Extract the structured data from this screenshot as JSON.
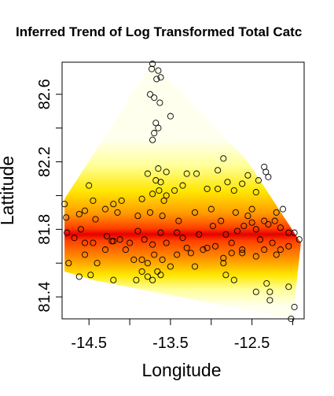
{
  "chart_data": {
    "type": "heatmap",
    "title": "Inferred Trend of Log Transformed Total Catc",
    "xlabel": "Longitude",
    "ylabel": "Lattitude",
    "xlim": [
      -14.83,
      -11.86
    ],
    "ylim": [
      81.27,
      82.79
    ],
    "xticks": [
      -14.5,
      -14.0,
      -13.5,
      -13.0,
      -12.5,
      -12.0
    ],
    "xtick_labels": [
      "-14.5",
      "",
      "-13.5",
      "",
      "-12.5",
      ""
    ],
    "yticks": [
      81.4,
      81.6,
      81.8,
      82.0,
      82.2,
      82.4,
      82.6
    ],
    "ytick_labels": [
      "81.4",
      "",
      "81.8",
      "",
      "82.2",
      "",
      "82.6"
    ],
    "color_scale": [
      "#ffffee",
      "#ffff99",
      "#ffe600",
      "#ff9900",
      "#ff4000",
      "#e60000"
    ],
    "trend_peak_latitude": 81.77,
    "hull": [
      [
        -13.72,
        82.79
      ],
      [
        -14.8,
        81.98
      ],
      [
        -14.8,
        81.55
      ],
      [
        -14.45,
        81.5
      ],
      [
        -12.0,
        81.27
      ],
      [
        -11.9,
        81.72
      ],
      [
        -12.55,
        82.2
      ]
    ],
    "points": [
      [
        -13.72,
        82.78
      ],
      [
        -13.65,
        82.74
      ],
      [
        -13.62,
        82.7
      ],
      [
        -13.67,
        82.69
      ],
      [
        -13.73,
        82.75
      ],
      [
        -13.7,
        82.58
      ],
      [
        -13.75,
        82.6
      ],
      [
        -13.63,
        82.55
      ],
      [
        -13.5,
        82.47
      ],
      [
        -13.68,
        82.43
      ],
      [
        -13.65,
        82.4
      ],
      [
        -13.7,
        82.37
      ],
      [
        -13.72,
        82.33
      ],
      [
        -13.55,
        82.14
      ],
      [
        -13.65,
        82.16
      ],
      [
        -13.78,
        82.13
      ],
      [
        -13.68,
        82.09
      ],
      [
        -13.62,
        82.08
      ],
      [
        -13.3,
        82.13
      ],
      [
        -13.18,
        82.13
      ],
      [
        -12.92,
        82.15
      ],
      [
        -12.85,
        82.22
      ],
      [
        -12.62,
        82.07
      ],
      [
        -12.55,
        82.12
      ],
      [
        -12.42,
        82.09
      ],
      [
        -12.35,
        82.17
      ],
      [
        -12.33,
        82.14
      ],
      [
        -12.3,
        82.11
      ],
      [
        -12.45,
        82.02
      ],
      [
        -12.72,
        82.03
      ],
      [
        -12.8,
        82.08
      ],
      [
        -12.92,
        82.04
      ],
      [
        -13.05,
        82.04
      ],
      [
        -13.35,
        82.06
      ],
      [
        -13.45,
        82.03
      ],
      [
        -13.72,
        82.01
      ],
      [
        -13.64,
        82.03
      ],
      [
        -13.55,
        82.0
      ],
      [
        -13.58,
        81.97
      ],
      [
        -13.85,
        81.98
      ],
      [
        -14.1,
        81.97
      ],
      [
        -14.2,
        81.95
      ],
      [
        -14.45,
        81.97
      ],
      [
        -14.5,
        82.06
      ],
      [
        -14.55,
        81.91
      ],
      [
        -14.62,
        81.89
      ],
      [
        -14.8,
        81.95
      ],
      [
        -14.78,
        81.87
      ],
      [
        -14.77,
        81.78
      ],
      [
        -14.68,
        81.75
      ],
      [
        -14.6,
        81.8
      ],
      [
        -14.55,
        81.72
      ],
      [
        -14.45,
        81.72
      ],
      [
        -14.28,
        81.76
      ],
      [
        -14.22,
        81.73
      ],
      [
        -14.12,
        81.74
      ],
      [
        -14.0,
        81.72
      ],
      [
        -13.9,
        81.79
      ],
      [
        -13.82,
        81.74
      ],
      [
        -13.72,
        81.71
      ],
      [
        -13.62,
        81.78
      ],
      [
        -13.55,
        81.72
      ],
      [
        -13.42,
        81.78
      ],
      [
        -13.35,
        81.75
      ],
      [
        -13.3,
        81.69
      ],
      [
        -13.15,
        81.77
      ],
      [
        -13.05,
        81.69
      ],
      [
        -12.98,
        81.82
      ],
      [
        -12.88,
        81.85
      ],
      [
        -12.82,
        81.77
      ],
      [
        -12.75,
        81.72
      ],
      [
        -12.68,
        81.79
      ],
      [
        -12.62,
        81.68
      ],
      [
        -12.55,
        81.88
      ],
      [
        -12.5,
        81.84
      ],
      [
        -12.45,
        81.8
      ],
      [
        -12.4,
        81.74
      ],
      [
        -12.35,
        81.85
      ],
      [
        -12.3,
        81.83
      ],
      [
        -12.22,
        81.85
      ],
      [
        -12.15,
        81.81
      ],
      [
        -12.05,
        81.78
      ],
      [
        -11.98,
        81.78
      ],
      [
        -11.92,
        81.74
      ],
      [
        -12.05,
        81.7
      ],
      [
        -12.15,
        81.68
      ],
      [
        -12.2,
        81.65
      ],
      [
        -12.25,
        81.72
      ],
      [
        -12.35,
        81.68
      ],
      [
        -12.45,
        81.64
      ],
      [
        -12.62,
        81.66
      ],
      [
        -12.75,
        81.66
      ],
      [
        -12.85,
        81.63
      ],
      [
        -12.95,
        81.7
      ],
      [
        -13.1,
        81.68
      ],
      [
        -13.25,
        81.66
      ],
      [
        -13.42,
        81.65
      ],
      [
        -13.5,
        81.58
      ],
      [
        -13.6,
        81.62
      ],
      [
        -13.7,
        81.65
      ],
      [
        -13.78,
        81.6
      ],
      [
        -13.85,
        81.62
      ],
      [
        -13.95,
        81.62
      ],
      [
        -14.05,
        81.68
      ],
      [
        -14.2,
        81.73
      ],
      [
        -14.3,
        81.68
      ],
      [
        -14.4,
        81.6
      ],
      [
        -14.55,
        81.65
      ],
      [
        -14.75,
        81.6
      ],
      [
        -14.62,
        81.52
      ],
      [
        -14.48,
        81.53
      ],
      [
        -14.2,
        81.5
      ],
      [
        -13.92,
        81.5
      ],
      [
        -13.78,
        81.52
      ],
      [
        -13.72,
        81.5
      ],
      [
        -13.66,
        81.55
      ],
      [
        -13.62,
        81.53
      ],
      [
        -13.85,
        81.55
      ],
      [
        -12.72,
        81.5
      ],
      [
        -12.82,
        81.53
      ],
      [
        -12.32,
        81.48
      ],
      [
        -12.28,
        81.43
      ],
      [
        -12.45,
        81.43
      ],
      [
        -12.28,
        81.38
      ],
      [
        -12.05,
        81.46
      ],
      [
        -12.02,
        81.27
      ],
      [
        -11.98,
        81.34
      ],
      [
        -12.6,
        81.82
      ],
      [
        -12.2,
        81.9
      ],
      [
        -12.12,
        81.92
      ],
      [
        -12.5,
        81.92
      ],
      [
        -12.7,
        81.9
      ],
      [
        -13.0,
        81.92
      ],
      [
        -13.2,
        81.9
      ],
      [
        -13.4,
        81.85
      ],
      [
        -13.6,
        81.88
      ],
      [
        -13.75,
        81.9
      ],
      [
        -13.9,
        81.88
      ],
      [
        -14.15,
        81.9
      ],
      [
        -14.3,
        81.92
      ],
      [
        -14.42,
        81.86
      ],
      [
        -12.85,
        81.6
      ],
      [
        -13.2,
        81.58
      ]
    ]
  }
}
